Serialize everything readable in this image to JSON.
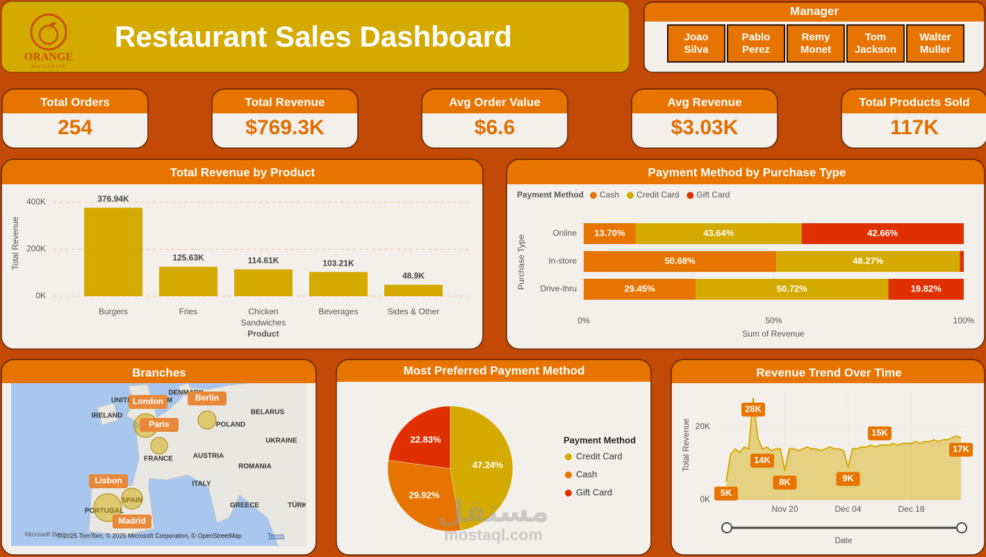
{
  "header": {
    "logo": "ORANGE",
    "logo_sub": "RESTAURANT",
    "title": "Restaurant Sales Dashboard"
  },
  "manager": {
    "title": "Manager",
    "names": [
      "Joao Silva",
      "Pablo Perez",
      "Remy Monet",
      "Tom Jackson",
      "Walter Muller"
    ]
  },
  "kpis": [
    {
      "label": "Total Orders",
      "value": "254"
    },
    {
      "label": "Total Revenue",
      "value": "$769.3K"
    },
    {
      "label": "Avg Order Value",
      "value": "$6.6"
    },
    {
      "label": "Avg Revenue",
      "value": "$3.03K"
    },
    {
      "label": "Total Products Sold",
      "value": "117K"
    }
  ],
  "map": {
    "title": "Branches",
    "countries": [
      "UNITED KINGDOM",
      "IRELAND",
      "DENMARK",
      "POLAND",
      "BELARUS",
      "UKRAINE",
      "FRANCE",
      "AUSTRIA",
      "ROMANIA",
      "ITALY",
      "GREECE",
      "PORTUGAL",
      "SPAIN",
      "TÜRK"
    ],
    "cities": [
      "London",
      "Paris",
      "Berlin",
      "Lisbon",
      "Madrid"
    ],
    "brand": "Microsoft Bing",
    "attribution": "© 2025 TomTom, © 2025 Microsoft Corporation, © OpenStreetMap",
    "terms": "Terms"
  },
  "watermark": {
    "arabic": "مستقل",
    "latin": "mostaql.com"
  },
  "chart_data": [
    {
      "type": "bar",
      "title": "Total Revenue by Product",
      "categories": [
        "Burgers",
        "Fries",
        "Chicken Sandwiches",
        "Beverages",
        "Sides & Other"
      ],
      "values": [
        376940,
        125630,
        114610,
        103210,
        48900
      ],
      "value_labels": [
        "376.94K",
        "125.63K",
        "114.61K",
        "103.21K",
        "48.9K"
      ],
      "color": "#d4aa00",
      "xlabel": "Product",
      "ylabel": "Total Revenue",
      "ylim": [
        0,
        450000
      ],
      "yticks": [
        {
          "value": 0,
          "label": "0K"
        },
        {
          "value": 200000,
          "label": "200K"
        },
        {
          "value": 400000,
          "label": "400K"
        }
      ],
      "grid": true
    },
    {
      "type": "barh",
      "stacked": true,
      "title": "Payment Method by Purchase Type",
      "legend_title": "Payment Method",
      "categories": [
        "Online",
        "In-store",
        "Drive-thru"
      ],
      "series": [
        {
          "name": "Cash",
          "color": "#e87400",
          "values": [
            13.7,
            50.68,
            29.45
          ],
          "value_labels": [
            "13.70%",
            "50.68%",
            "29.45%"
          ]
        },
        {
          "name": "Credit Card",
          "color": "#d4aa00",
          "values": [
            43.64,
            48.27,
            50.72
          ],
          "value_labels": [
            "43.64%",
            "48.27%",
            "50.72%"
          ]
        },
        {
          "name": "Gift Card",
          "color": "#e03000",
          "values": [
            42.66,
            1.05,
            19.82
          ],
          "value_labels": [
            "42.66%",
            null,
            "19.82%"
          ]
        }
      ],
      "xlabel": "Sum of Revenue",
      "ylabel": "Purchase Type",
      "xlim": [
        0,
        100
      ],
      "xticks": [
        {
          "value": 0,
          "label": "0%"
        },
        {
          "value": 50,
          "label": "50%"
        },
        {
          "value": 100,
          "label": "100%"
        }
      ]
    },
    {
      "type": "pie",
      "title": "Most Preferred Payment Method",
      "legend_title": "Payment Method",
      "categories": [
        "Credit Card",
        "Cash",
        "Gift Card"
      ],
      "values": [
        47.24,
        29.92,
        22.83
      ],
      "value_labels": [
        "47.24%",
        "29.92%",
        "22.83%"
      ],
      "colors": [
        "#d4aa00",
        "#e87400",
        "#e03000"
      ]
    },
    {
      "type": "area",
      "title": "Revenue Trend Over Time",
      "xlabel": "Date",
      "ylabel": "Total Revenue",
      "color": "#d4aa00",
      "x": [
        "Nov 07",
        "Nov 08",
        "Nov 09",
        "Nov 10",
        "Nov 11",
        "Nov 12",
        "Nov 13",
        "Nov 14",
        "Nov 15",
        "Nov 16",
        "Nov 17",
        "Nov 18",
        "Nov 19",
        "Nov 20",
        "Nov 21",
        "Nov 22",
        "Nov 23",
        "Nov 24",
        "Nov 25",
        "Nov 26",
        "Nov 27",
        "Nov 28",
        "Nov 29",
        "Nov 30",
        "Dec 01",
        "Dec 02",
        "Dec 03",
        "Dec 04",
        "Dec 05",
        "Dec 06",
        "Dec 07",
        "Dec 08",
        "Dec 09",
        "Dec 10",
        "Dec 11",
        "Dec 12",
        "Dec 13",
        "Dec 14",
        "Dec 15",
        "Dec 16",
        "Dec 17",
        "Dec 18",
        "Dec 19",
        "Dec 20",
        "Dec 21",
        "Dec 22",
        "Dec 23",
        "Dec 24",
        "Dec 25",
        "Dec 26",
        "Dec 27",
        "Dec 28",
        "Dec 29"
      ],
      "values": [
        5000,
        12500,
        14000,
        13000,
        14500,
        14000,
        28000,
        17000,
        14000,
        14500,
        13500,
        14000,
        14000,
        8000,
        14000,
        14000,
        13500,
        14000,
        14500,
        14000,
        14000,
        13500,
        14000,
        14500,
        14000,
        14000,
        13500,
        9000,
        14000,
        14000,
        14500,
        14500,
        15000,
        14500,
        15000,
        15000,
        15000,
        15500,
        15000,
        15500,
        15500,
        15500,
        16000,
        15500,
        16000,
        16000,
        16500,
        16000,
        16500,
        16500,
        17000,
        17500,
        17000
      ],
      "value_labels": [
        "5K",
        null,
        null,
        null,
        null,
        null,
        "28K",
        null,
        "14K",
        null,
        null,
        null,
        null,
        "8K",
        null,
        null,
        null,
        null,
        null,
        null,
        null,
        null,
        null,
        null,
        null,
        null,
        null,
        "9K",
        null,
        null,
        null,
        null,
        null,
        null,
        "15K",
        null,
        null,
        null,
        null,
        null,
        null,
        null,
        null,
        null,
        null,
        null,
        null,
        null,
        null,
        null,
        null,
        null,
        "17K"
      ],
      "xticks": [
        "Nov 20",
        "Dec 04",
        "Dec 18"
      ],
      "ylim": [
        0,
        30000
      ],
      "yticks": [
        {
          "value": 0,
          "label": "0K"
        },
        {
          "value": 20000,
          "label": "20K"
        }
      ]
    }
  ]
}
